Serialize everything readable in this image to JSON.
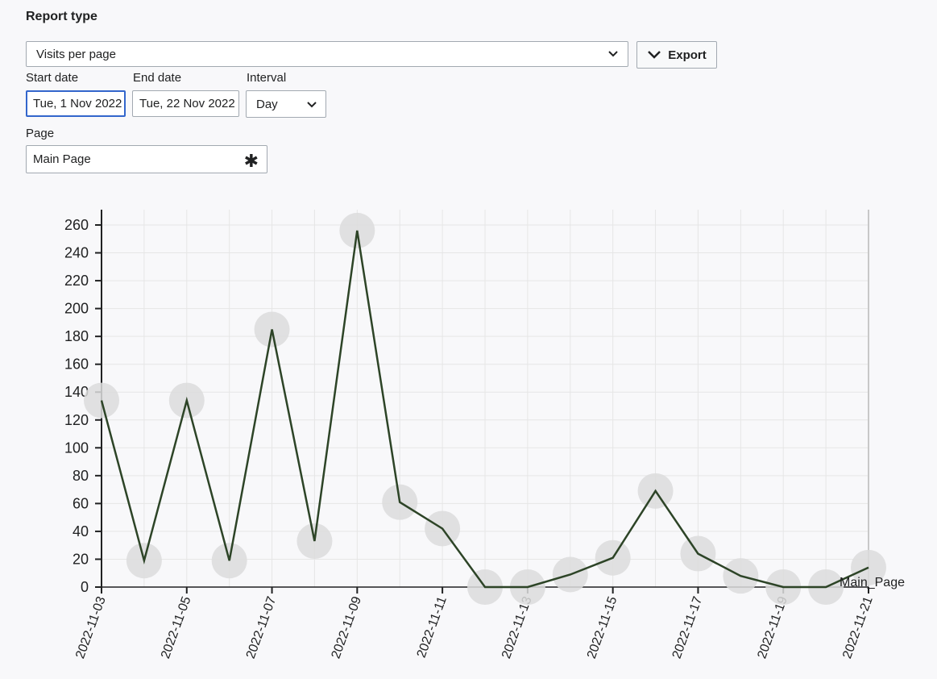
{
  "form": {
    "report_type_label": "Report type",
    "report_type_value": "Visits per page",
    "export_label": "Export",
    "start_date_label": "Start date",
    "start_date_value": "Tue, 1 Nov 2022",
    "end_date_label": "End date",
    "end_date_value": "Tue, 22 Nov 2022",
    "interval_label": "Interval",
    "interval_value": "Day",
    "page_label": "Page",
    "page_value": "Main Page"
  },
  "colors": {
    "line": "#2d4427",
    "point": "#dcdcdc",
    "grid": "#e6e6e6",
    "focus_border": "#3366cc"
  },
  "chart_data": {
    "type": "line",
    "x": [
      "2022-11-03",
      "2022-11-04",
      "2022-11-05",
      "2022-11-06",
      "2022-11-07",
      "2022-11-08",
      "2022-11-09",
      "2022-11-10",
      "2022-11-11",
      "2022-11-12",
      "2022-11-13",
      "2022-11-14",
      "2022-11-15",
      "2022-11-16",
      "2022-11-17",
      "2022-11-18",
      "2022-11-19",
      "2022-11-20",
      "2022-11-21"
    ],
    "series": [
      {
        "name": "Main_Page",
        "values": [
          134,
          19,
          134,
          19,
          185,
          33,
          256,
          61,
          42,
          0,
          0,
          9,
          21,
          69,
          24,
          8,
          0,
          0,
          14
        ]
      }
    ],
    "x_tick_labels": [
      "2022-11-03",
      "2022-11-05",
      "2022-11-07",
      "2022-11-09",
      "2022-11-11",
      "2022-11-13",
      "2022-11-15",
      "2022-11-17",
      "2022-11-19",
      "2022-11-21"
    ],
    "y_ticks": [
      0,
      20,
      40,
      60,
      80,
      100,
      120,
      140,
      160,
      180,
      200,
      220,
      240,
      260
    ],
    "ylim": [
      0,
      260
    ],
    "title": "",
    "xlabel": "",
    "ylabel": "",
    "grid": true
  }
}
